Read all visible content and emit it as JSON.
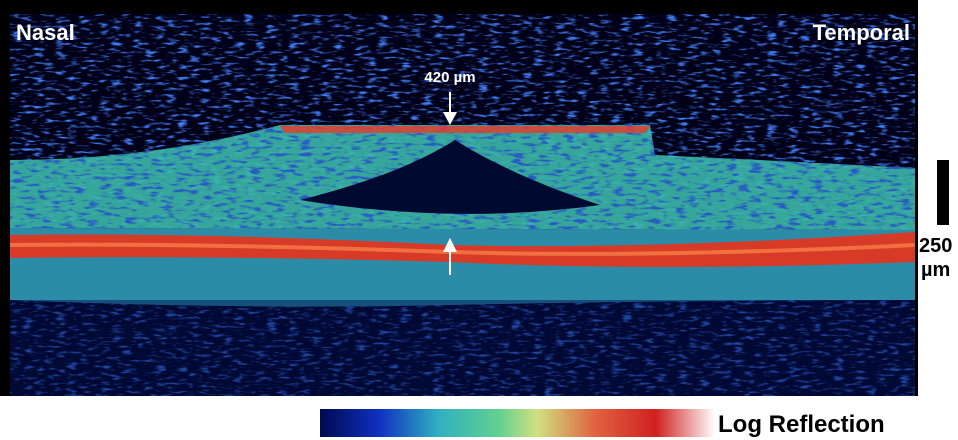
{
  "labels": {
    "nasal": "Nasal",
    "temporal": "Temporal",
    "thickness": "420 µm"
  },
  "scale_bar": {
    "value": "250",
    "unit": "µm"
  },
  "color_bar": {
    "label": "Log Reflection"
  }
}
